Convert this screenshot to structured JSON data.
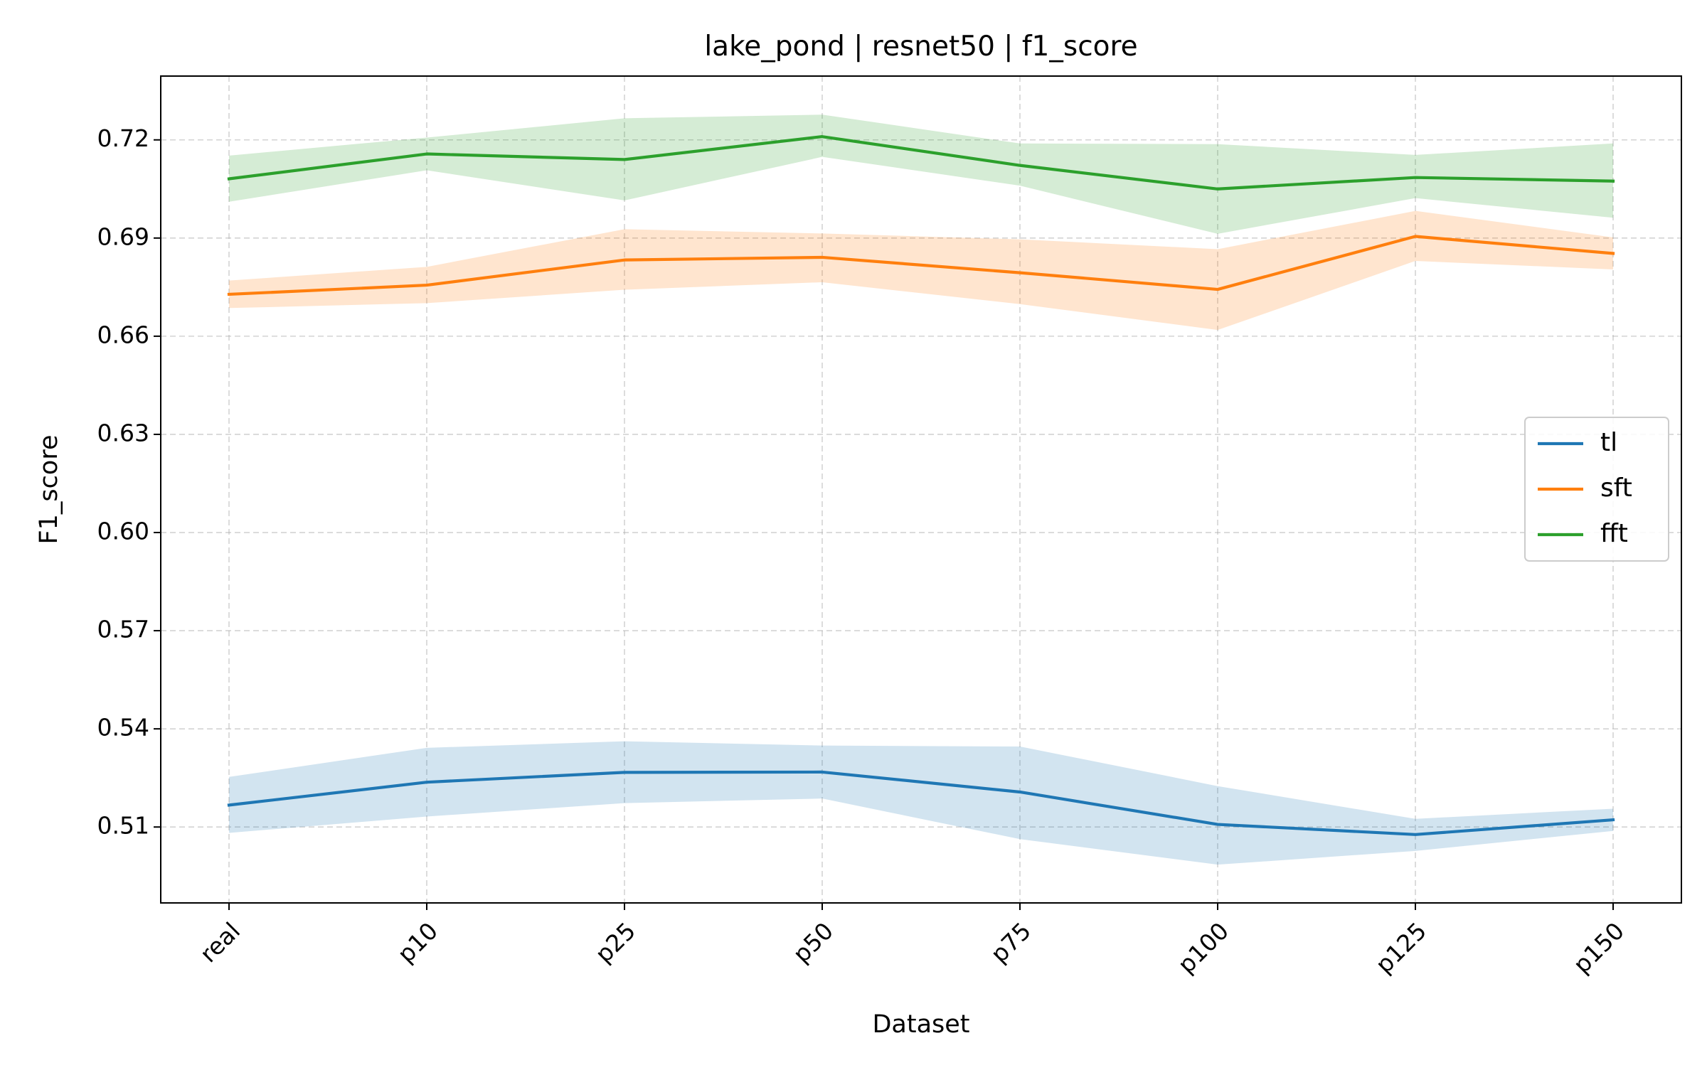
{
  "chart_data": {
    "type": "line",
    "title": "lake_pond | resnet50 | f1_score",
    "xlabel": "Dataset",
    "ylabel": "F1_score",
    "categories": [
      "real",
      "p10",
      "p25",
      "p50",
      "p75",
      "p100",
      "p125",
      "p150"
    ],
    "yticks": [
      "0.51",
      "0.54",
      "0.57",
      "0.60",
      "0.63",
      "0.66",
      "0.69",
      "0.72"
    ],
    "ylim": [
      0.4868,
      0.7395
    ],
    "grid": true,
    "legend_position": "center-right",
    "series": [
      {
        "name": "tl",
        "color": "#1f77b4",
        "band_opacity": 0.2,
        "values": [
          0.5167,
          0.5237,
          0.5267,
          0.5268,
          0.5207,
          0.5108,
          0.5077,
          0.5122
        ],
        "lower": [
          0.5082,
          0.5132,
          0.5173,
          0.5187,
          0.5063,
          0.4985,
          0.5027,
          0.5088
        ],
        "upper": [
          0.5253,
          0.5342,
          0.5362,
          0.5349,
          0.5346,
          0.5225,
          0.5125,
          0.5156
        ]
      },
      {
        "name": "sft",
        "color": "#ff7f0e",
        "band_opacity": 0.2,
        "values": [
          0.6728,
          0.6756,
          0.6833,
          0.6841,
          0.6794,
          0.6743,
          0.6905,
          0.6853
        ],
        "lower": [
          0.6686,
          0.6701,
          0.6742,
          0.6765,
          0.6698,
          0.6619,
          0.683,
          0.6804
        ],
        "upper": [
          0.677,
          0.6812,
          0.6927,
          0.6914,
          0.6896,
          0.6866,
          0.6983,
          0.6902
        ]
      },
      {
        "name": "fft",
        "color": "#2ca02c",
        "band_opacity": 0.2,
        "values": [
          0.7081,
          0.7157,
          0.714,
          0.721,
          0.7122,
          0.705,
          0.7085,
          0.7074
        ],
        "lower": [
          0.7011,
          0.7107,
          0.7015,
          0.7148,
          0.706,
          0.6913,
          0.7022,
          0.6962
        ],
        "upper": [
          0.7152,
          0.7207,
          0.7266,
          0.7277,
          0.7189,
          0.7187,
          0.7154,
          0.7189
        ]
      }
    ]
  }
}
